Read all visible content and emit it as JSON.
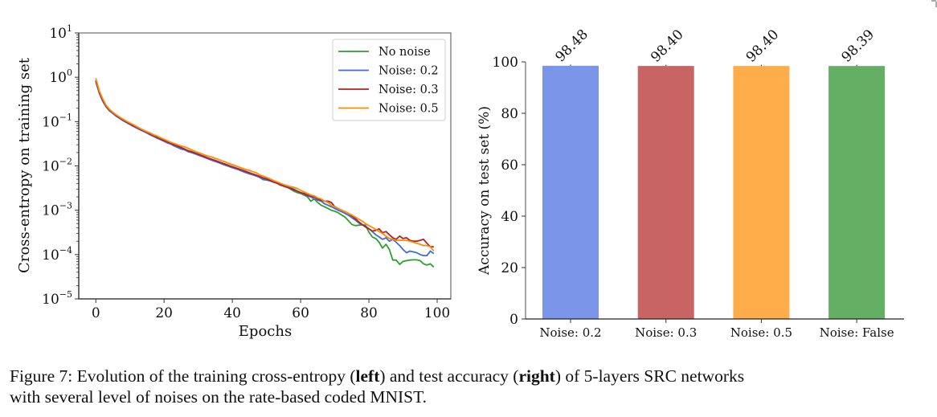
{
  "chart_data": [
    {
      "type": "line",
      "title": "",
      "xlabel": "Epochs",
      "ylabel": "Cross-entropy on training set",
      "yscale": "log",
      "xlim": [
        -5,
        104
      ],
      "ylim": [
        1e-05,
        10
      ],
      "xticks": [
        0,
        20,
        40,
        60,
        80,
        100
      ],
      "xtick_labels": [
        "0",
        "20",
        "40",
        "60",
        "80",
        "100"
      ],
      "yticks": [
        10,
        1,
        0.1,
        0.01,
        0.001,
        0.0001,
        1e-05
      ],
      "ytick_labels": [
        {
          "base": "10",
          "exp": "1"
        },
        {
          "base": "10",
          "exp": "0"
        },
        {
          "base": "10",
          "exp": "−1"
        },
        {
          "base": "10",
          "exp": "−2"
        },
        {
          "base": "10",
          "exp": "−3"
        },
        {
          "base": "10",
          "exp": "−4"
        },
        {
          "base": "10",
          "exp": "−5"
        }
      ],
      "legend_position": "top-right",
      "grid": false,
      "x": [
        0,
        1,
        2,
        3,
        4,
        5,
        6,
        7,
        8,
        9,
        10,
        11,
        12,
        13,
        14,
        15,
        16,
        17,
        18,
        19,
        20,
        21,
        22,
        23,
        24,
        25,
        26,
        27,
        28,
        29,
        30,
        31,
        32,
        33,
        34,
        35,
        36,
        37,
        38,
        39,
        40,
        41,
        42,
        43,
        44,
        45,
        46,
        47,
        48,
        49,
        50,
        51,
        52,
        53,
        54,
        55,
        56,
        57,
        58,
        59,
        60,
        61,
        62,
        63,
        64,
        65,
        66,
        67,
        68,
        69,
        70,
        71,
        72,
        73,
        74,
        75,
        76,
        77,
        78,
        79,
        80,
        81,
        82,
        83,
        84,
        85,
        86,
        87,
        88,
        89,
        90,
        91,
        92,
        93,
        94,
        95,
        96,
        97,
        98,
        99
      ],
      "series": [
        {
          "name": "No noise",
          "color": "#2ca02c",
          "values": [
            0.82,
            0.45,
            0.3,
            0.22,
            0.18,
            0.155,
            0.135,
            0.12,
            0.108,
            0.097,
            0.088,
            0.08,
            0.073,
            0.067,
            0.061,
            0.056,
            0.051,
            0.047,
            0.043,
            0.04,
            0.037,
            0.034,
            0.032,
            0.029,
            0.027,
            0.025,
            0.024,
            0.022,
            0.021,
            0.0195,
            0.0183,
            0.017,
            0.0158,
            0.0148,
            0.014,
            0.0132,
            0.0122,
            0.0115,
            0.0107,
            0.01,
            0.0094,
            0.0088,
            0.0082,
            0.0077,
            0.0071,
            0.0066,
            0.0064,
            0.006,
            0.0055,
            0.0052,
            0.0051,
            0.0047,
            0.0044,
            0.0042,
            0.0039,
            0.0036,
            0.0034,
            0.003,
            0.0027,
            0.0025,
            0.0024,
            0.0022,
            0.002,
            0.0016,
            0.0018,
            0.0015,
            0.0013,
            0.0012,
            0.0011,
            0.001,
            0.00095,
            0.00088,
            0.00078,
            0.0007,
            0.00058,
            0.00048,
            0.00045,
            0.00046,
            0.00047,
            0.00046,
            0.00032,
            0.00025,
            0.00023,
            0.00019,
            0.00014,
            0.00017,
            0.00013,
            7.5e-05,
            7.5e-05,
            6e-05,
            7e-05,
            7.3e-05,
            7.5e-05,
            7.6e-05,
            7.6e-05,
            7.3e-05,
            6.2e-05,
            5.8e-05,
            6.2e-05,
            5.2e-05
          ]
        },
        {
          "name": "Noise: 0.2",
          "color": "#4169e1",
          "values": [
            0.8,
            0.44,
            0.29,
            0.215,
            0.175,
            0.152,
            0.132,
            0.118,
            0.105,
            0.095,
            0.086,
            0.078,
            0.071,
            0.065,
            0.06,
            0.055,
            0.05,
            0.046,
            0.042,
            0.039,
            0.036,
            0.033,
            0.031,
            0.028,
            0.026,
            0.024,
            0.023,
            0.021,
            0.02,
            0.0188,
            0.0176,
            0.0165,
            0.0153,
            0.0143,
            0.0134,
            0.0126,
            0.0118,
            0.011,
            0.0103,
            0.0097,
            0.0091,
            0.0086,
            0.0081,
            0.0075,
            0.007,
            0.0067,
            0.0063,
            0.0059,
            0.0055,
            0.0049,
            0.0048,
            0.0046,
            0.0043,
            0.0041,
            0.0037,
            0.0035,
            0.0034,
            0.0032,
            0.003,
            0.0027,
            0.0025,
            0.0023,
            0.0021,
            0.002,
            0.0018,
            0.0017,
            0.0016,
            0.0014,
            0.0013,
            0.0012,
            0.0011,
            0.001,
            0.00093,
            0.00085,
            0.00077,
            0.00068,
            0.0006,
            0.00052,
            0.00047,
            0.00044,
            0.00038,
            0.00033,
            0.00028,
            0.00025,
            0.00022,
            0.00024,
            0.0002,
            0.00022,
            0.00019,
            0.00016,
            0.00013,
            0.00011,
            0.00012,
            0.000115,
            0.00011,
            0.0001,
            9.5e-05,
            9.5e-05,
            0.00012,
            0.000105
          ]
        },
        {
          "name": "Noise: 0.3",
          "color": "#b22222",
          "values": [
            0.85,
            0.46,
            0.31,
            0.225,
            0.182,
            0.158,
            0.137,
            0.122,
            0.109,
            0.098,
            0.089,
            0.081,
            0.074,
            0.067,
            0.062,
            0.057,
            0.052,
            0.048,
            0.044,
            0.041,
            0.037,
            0.035,
            0.032,
            0.03,
            0.028,
            0.026,
            0.024,
            0.022,
            0.021,
            0.0197,
            0.0184,
            0.0171,
            0.016,
            0.015,
            0.0141,
            0.0133,
            0.0124,
            0.0116,
            0.0109,
            0.0102,
            0.0096,
            0.009,
            0.0085,
            0.008,
            0.0075,
            0.007,
            0.0066,
            0.0062,
            0.0058,
            0.0054,
            0.0051,
            0.0047,
            0.0044,
            0.0041,
            0.0038,
            0.0035,
            0.0033,
            0.0031,
            0.0029,
            0.0027,
            0.0025,
            0.0024,
            0.0022,
            0.0021,
            0.002,
            0.0018,
            0.0017,
            0.0016,
            0.0016,
            0.0015,
            0.0012,
            0.0011,
            0.001,
            0.00093,
            0.00085,
            0.00075,
            0.00065,
            0.00055,
            0.00048,
            0.00042,
            0.00038,
            0.00034,
            0.00035,
            0.00038,
            0.00031,
            0.00033,
            0.00028,
            0.00024,
            0.00022,
            0.00026,
            0.00023,
            0.00024,
            0.00021,
            0.0002,
            0.0002,
            0.00021,
            0.00022,
            0.00018,
            0.00015,
            0.00015
          ]
        },
        {
          "name": "Noise: 0.5",
          "color": "#ff8c00",
          "values": [
            0.95,
            0.5,
            0.33,
            0.235,
            0.19,
            0.162,
            0.142,
            0.126,
            0.113,
            0.102,
            0.093,
            0.085,
            0.077,
            0.07,
            0.064,
            0.059,
            0.055,
            0.05,
            0.047,
            0.043,
            0.04,
            0.037,
            0.034,
            0.032,
            0.03,
            0.028,
            0.027,
            0.025,
            0.023,
            0.0215,
            0.02,
            0.0188,
            0.0175,
            0.0166,
            0.0158,
            0.0148,
            0.0139,
            0.013,
            0.0122,
            0.0114,
            0.0107,
            0.01,
            0.0094,
            0.0088,
            0.0083,
            0.0079,
            0.0074,
            0.007,
            0.0063,
            0.0059,
            0.0055,
            0.0051,
            0.0047,
            0.0044,
            0.0041,
            0.0038,
            0.0036,
            0.0034,
            0.0033,
            0.0031,
            0.0028,
            0.0026,
            0.0024,
            0.0022,
            0.0021,
            0.0019,
            0.0018,
            0.0016,
            0.0015,
            0.0013,
            0.0012,
            0.0011,
            0.001,
            0.00093,
            0.00085,
            0.00078,
            0.0007,
            0.00063,
            0.00057,
            0.0005,
            0.00045,
            0.00041,
            0.00037,
            0.00033,
            0.0003,
            0.00026,
            0.00023,
            0.00022,
            0.00021,
            0.00021,
            0.00021,
            0.00021,
            0.0002,
            0.00019,
            0.00018,
            0.00017,
            0.00016,
            0.00016,
            0.00015,
            0.00012
          ]
        }
      ]
    },
    {
      "type": "bar",
      "title": "",
      "xlabel": "",
      "ylabel": "Accuracy on test set (%)",
      "ylim": [
        0,
        100
      ],
      "yticks": [
        0,
        20,
        40,
        60,
        80,
        100
      ],
      "ytick_labels": [
        "0",
        "20",
        "40",
        "60",
        "80",
        "100"
      ],
      "categories": [
        "Noise: 0.2",
        "Noise: 0.3",
        "Noise: 0.5",
        "Noise: False"
      ],
      "values": [
        98.48,
        98.4,
        98.4,
        98.39
      ],
      "value_labels": [
        "98.48",
        "98.40",
        "98.40",
        "98.39"
      ],
      "colors": [
        "#7b96e8",
        "#c86464",
        "#ffad4a",
        "#64af64"
      ],
      "grid": false
    }
  ],
  "caption": {
    "prefix": "Figure 7: Evolution of the training cross-entropy (",
    "left_bold": "left",
    "middle": ") and test accuracy (",
    "right_bold": "right",
    "suffix_line1": ") of 5-layers SRC networks",
    "line2": "with several level of noises on the rate-based coded MNIST."
  }
}
